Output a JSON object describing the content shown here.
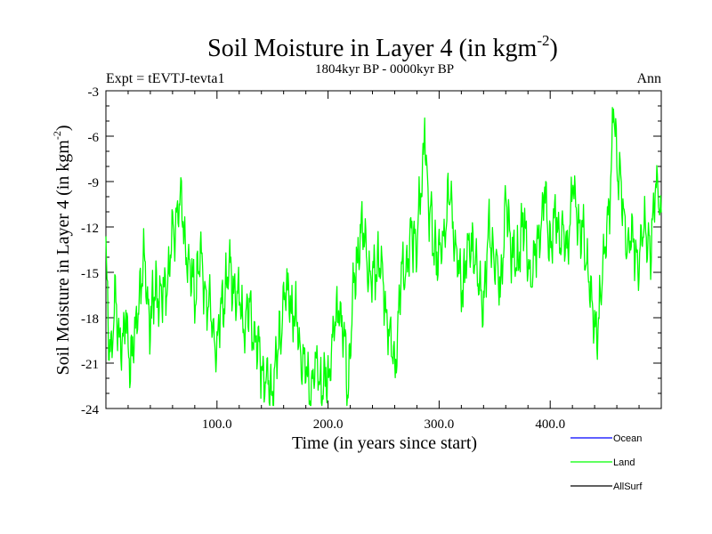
{
  "chart_data": {
    "type": "line",
    "title_main": "Soil Moisture in Layer 4 (in kgm",
    "title_sup": "-2",
    "title_close": ")",
    "subtitle": "1804kyr BP - 0000kyr BP",
    "expt_label": "Expt = tEVTJ-tevta1",
    "season_label": "Ann",
    "xlabel": "Time (in years since start)",
    "ylabel_main": "Soil Moisture in Layer 4 (in kgm",
    "ylabel_sup": "-2",
    "ylabel_close": ")",
    "xlim": [
      0,
      500
    ],
    "ylim": [
      -24,
      -3
    ],
    "x_ticks": [
      100,
      200,
      300,
      400
    ],
    "x_tick_labels": [
      "100.0",
      "200.0",
      "300.0",
      "400.0"
    ],
    "y_ticks": [
      -3,
      -6,
      -9,
      -12,
      -15,
      -18,
      -21,
      -24
    ],
    "y_tick_labels": [
      "-3",
      "-6",
      "-9",
      "-12",
      "-15",
      "-18",
      "-21",
      "-24"
    ],
    "legend": [
      {
        "name": "Ocean",
        "color": "#0000ff"
      },
      {
        "name": "Land",
        "color": "#00ff00"
      },
      {
        "name": "AllSurf",
        "color": "#000000"
      }
    ],
    "series": [
      {
        "name": "Land",
        "color": "#00ff00",
        "anchors": {
          "x": [
            0,
            2,
            5,
            8,
            12,
            15,
            18,
            22,
            26,
            30,
            35,
            40,
            45,
            50,
            55,
            60,
            64,
            67,
            70,
            75,
            80,
            85,
            90,
            95,
            100,
            105,
            110,
            115,
            120,
            125,
            130,
            135,
            140,
            145,
            150,
            155,
            160,
            165,
            170,
            175,
            180,
            185,
            190,
            195,
            200,
            205,
            210,
            215,
            218,
            222,
            226,
            230,
            235,
            240,
            245,
            250,
            255,
            260,
            265,
            270,
            275,
            280,
            285,
            287,
            290,
            295,
            300,
            305,
            310,
            315,
            320,
            325,
            330,
            335,
            340,
            345,
            350,
            355,
            360,
            365,
            370,
            375,
            380,
            385,
            390,
            395,
            400,
            405,
            410,
            415,
            420,
            425,
            430,
            435,
            440,
            445,
            450,
            455,
            457,
            460,
            465,
            470,
            475,
            480,
            485,
            490,
            495,
            500
          ],
          "y": [
            -14.0,
            -18.5,
            -20.5,
            -17.0,
            -19.0,
            -20.0,
            -18.0,
            -21.0,
            -19.5,
            -16.0,
            -14.5,
            -18.5,
            -16.0,
            -17.0,
            -15.5,
            -13.0,
            -11.0,
            -10.2,
            -12.0,
            -15.0,
            -16.0,
            -14.0,
            -16.5,
            -18.0,
            -20.0,
            -17.0,
            -15.0,
            -16.0,
            -17.0,
            -18.5,
            -17.5,
            -19.5,
            -21.0,
            -22.5,
            -23.0,
            -20.0,
            -17.0,
            -16.5,
            -18.0,
            -20.0,
            -21.5,
            -22.5,
            -21.0,
            -22.5,
            -22.0,
            -19.0,
            -17.0,
            -20.0,
            -23.0,
            -17.0,
            -14.0,
            -12.0,
            -14.0,
            -16.0,
            -13.5,
            -16.0,
            -19.0,
            -21.5,
            -16.0,
            -14.5,
            -13.0,
            -12.5,
            -9.0,
            -4.5,
            -10.5,
            -13.0,
            -14.5,
            -12.0,
            -10.0,
            -13.5,
            -16.0,
            -14.0,
            -13.0,
            -15.5,
            -17.0,
            -12.5,
            -14.0,
            -16.0,
            -10.5,
            -13.0,
            -15.0,
            -11.0,
            -14.5,
            -15.0,
            -12.0,
            -10.0,
            -13.0,
            -11.5,
            -12.5,
            -13.5,
            -9.5,
            -11.5,
            -13.0,
            -15.0,
            -19.0,
            -17.0,
            -13.0,
            -9.0,
            -3.5,
            -7.5,
            -10.5,
            -13.5,
            -12.5,
            -15.0,
            -11.0,
            -14.5,
            -8.5,
            -12.0
          ]
        }
      }
    ]
  }
}
